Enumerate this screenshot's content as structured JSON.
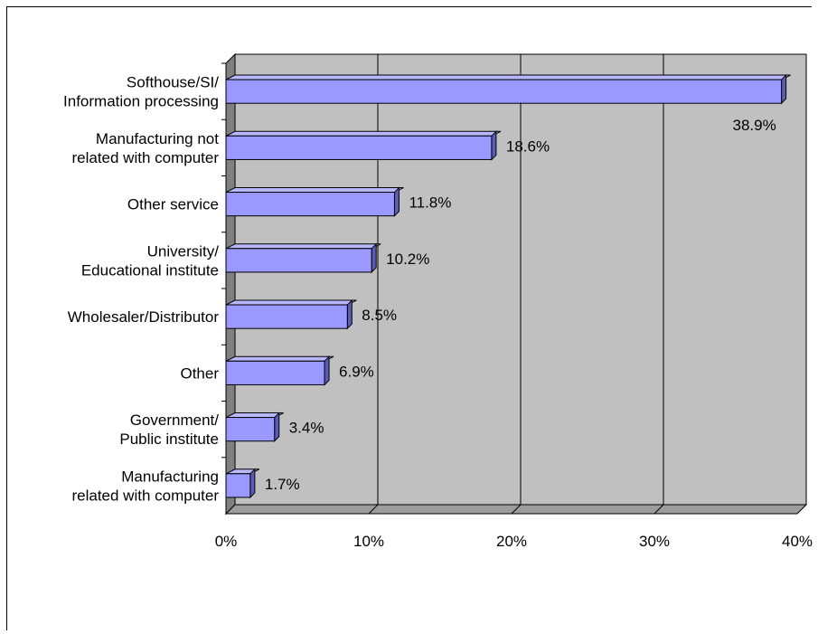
{
  "chart_data": {
    "type": "bar",
    "orientation": "horizontal",
    "style": "3d",
    "title": "",
    "xlabel": "",
    "ylabel": "",
    "categories": [
      "Softhouse/SI/\nInformation processing",
      "Manufacturing not\nrelated with computer",
      "Other service",
      "University/\nEducational institute",
      "Wholesaler/Distributor",
      "Other",
      "Government/\nPublic institute",
      "Manufacturing\nrelated with computer"
    ],
    "values": [
      38.9,
      18.6,
      11.8,
      10.2,
      8.5,
      6.9,
      3.4,
      1.7
    ],
    "value_labels": [
      "38.9%",
      "18.6%",
      "11.8%",
      "10.2%",
      "8.5%",
      "6.9%",
      "3.4%",
      "1.7%"
    ],
    "xlim": [
      0,
      40
    ],
    "xticks": [
      "0%",
      "10%",
      "20%",
      "30%",
      "40%"
    ],
    "grid": true,
    "legend": "none",
    "colors": {
      "bar_front": "#9999ff",
      "bar_top": "#b8b8ff",
      "bar_side": "#5c5cb8",
      "plot_back": "#c0c0c0",
      "plot_floor": "#9c9c9c",
      "left_wall": "#808080"
    }
  }
}
